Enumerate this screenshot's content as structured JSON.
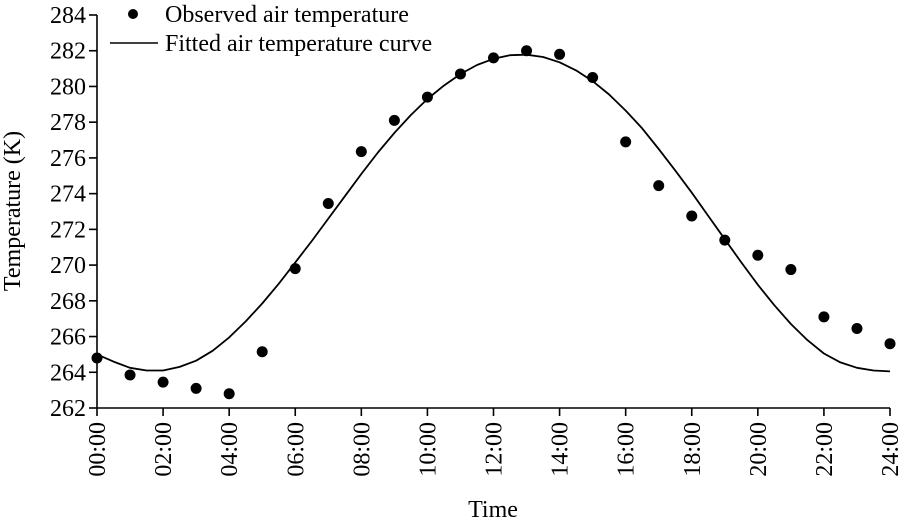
{
  "chart_data": {
    "type": "scatter",
    "title": "",
    "xlabel": "Time",
    "ylabel": "Temperature (K)",
    "xlim": [
      0,
      24
    ],
    "ylim": [
      262,
      284
    ],
    "grid": false,
    "legend_position": "top-left",
    "x_tick_values": [
      0,
      2,
      4,
      6,
      8,
      10,
      12,
      14,
      16,
      18,
      20,
      22,
      24
    ],
    "x_tick_labels": [
      "00:00",
      "02:00",
      "04:00",
      "06:00",
      "08:00",
      "10:00",
      "12:00",
      "14:00",
      "16:00",
      "18:00",
      "20:00",
      "22:00",
      "24:00"
    ],
    "y_tick_values": [
      262,
      264,
      266,
      268,
      270,
      272,
      274,
      276,
      278,
      280,
      282,
      284
    ],
    "y_tick_labels": [
      "262",
      "264",
      "266",
      "268",
      "270",
      "272",
      "274",
      "276",
      "278",
      "280",
      "282",
      "284"
    ],
    "series": [
      {
        "name": "Observed air temperature",
        "kind": "scatter",
        "color": "#000000",
        "x": [
          0,
          1,
          2,
          3,
          4,
          5,
          6,
          7,
          8,
          9,
          10,
          11,
          12,
          13,
          14,
          15,
          16,
          17,
          18,
          19,
          20,
          21,
          22,
          23,
          24
        ],
        "y": [
          264.8,
          263.85,
          263.45,
          263.1,
          262.8,
          265.15,
          269.8,
          273.45,
          276.35,
          278.1,
          279.4,
          280.7,
          281.6,
          282.0,
          281.8,
          280.5,
          276.9,
          274.45,
          272.75,
          271.4,
          270.55,
          269.75,
          267.1,
          266.45,
          265.6
        ]
      },
      {
        "name": "Fitted air temperature curve",
        "kind": "line",
        "color": "#000000",
        "x": [
          0,
          0.5,
          1,
          1.5,
          2,
          2.5,
          3,
          3.5,
          4,
          4.5,
          5,
          5.5,
          6,
          6.5,
          7,
          7.5,
          8,
          8.5,
          9,
          9.5,
          10,
          10.5,
          11,
          11.5,
          12,
          12.5,
          13,
          13.5,
          14,
          14.5,
          15,
          15.5,
          16,
          16.5,
          17,
          17.5,
          18,
          18.5,
          19,
          19.5,
          20,
          20.5,
          21,
          21.5,
          22,
          22.5,
          23,
          23.5,
          24
        ],
        "y": [
          265.0,
          264.6,
          264.25,
          264.1,
          264.1,
          264.3,
          264.65,
          265.2,
          265.95,
          266.85,
          267.85,
          268.95,
          270.15,
          271.35,
          272.6,
          273.85,
          275.1,
          276.3,
          277.4,
          278.4,
          279.3,
          280.05,
          280.7,
          281.2,
          281.55,
          281.75,
          281.78,
          281.65,
          281.35,
          280.9,
          280.3,
          279.55,
          278.65,
          277.65,
          276.5,
          275.3,
          274.05,
          272.75,
          271.45,
          270.15,
          268.9,
          267.75,
          266.7,
          265.8,
          265.05,
          264.55,
          264.25,
          264.1,
          264.05
        ]
      }
    ]
  }
}
